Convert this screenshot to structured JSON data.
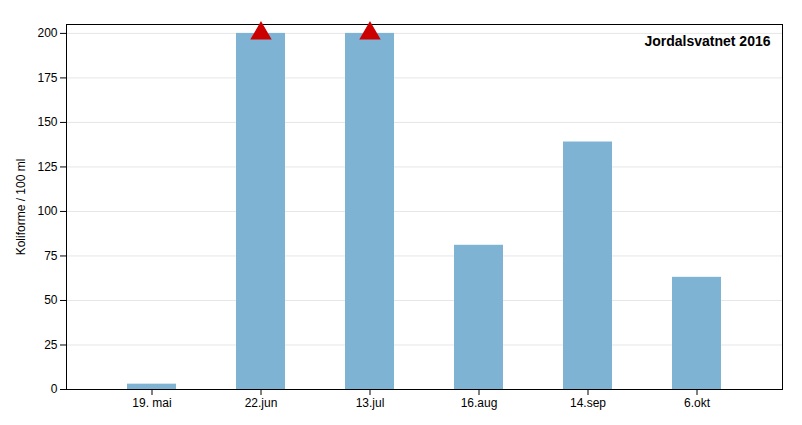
{
  "chart_data": {
    "type": "bar",
    "categories": [
      "19. mai",
      "22.jun",
      "13.jul",
      "16.aug",
      "14.sep",
      "6.okt"
    ],
    "values": [
      3,
      200,
      200,
      81,
      139,
      63
    ],
    "color": "#7fb3d3",
    "ylabel": "Koliforme / 100 ml",
    "annotation": "Jordalsvatnet 2016",
    "ylim": [
      0,
      205
    ],
    "yticks": [
      0,
      25,
      50,
      75,
      100,
      125,
      150,
      175,
      200
    ],
    "grid": true,
    "markers": {
      "marker": "triangle",
      "color": "#cc0000",
      "at": [
        false,
        true,
        true,
        false,
        false,
        false
      ]
    }
  }
}
